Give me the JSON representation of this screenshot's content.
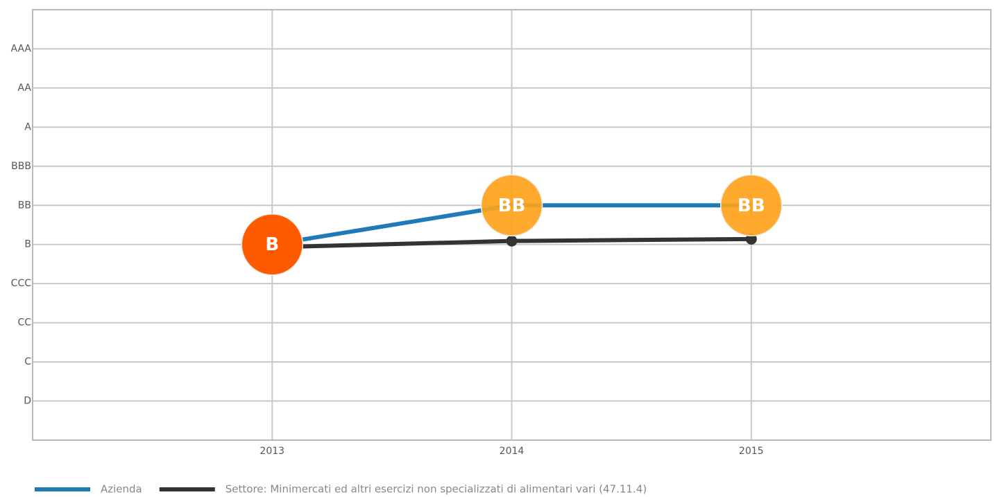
{
  "chart_data": {
    "type": "line",
    "categories": [
      "2013",
      "2014",
      "2015"
    ],
    "ylim": [
      0,
      11
    ],
    "yticks": [
      {
        "value": 1,
        "label": "D"
      },
      {
        "value": 2,
        "label": "C"
      },
      {
        "value": 3,
        "label": "CC"
      },
      {
        "value": 4,
        "label": "CCC"
      },
      {
        "value": 5,
        "label": "B"
      },
      {
        "value": 6,
        "label": "BB"
      },
      {
        "value": 7,
        "label": "BBB"
      },
      {
        "value": 8,
        "label": "A"
      },
      {
        "value": 9,
        "label": "AA"
      },
      {
        "value": 10,
        "label": "AAA"
      }
    ],
    "grid": true,
    "legend": "bottom-left",
    "series": [
      {
        "name": "Azienda",
        "color": "#1f7ab8",
        "values": [
          5,
          6,
          6
        ],
        "value_labels": [
          "B",
          "BB",
          "BB"
        ],
        "marker_colors": [
          "#ff5a00",
          "#ffa31a",
          "#ffa31a"
        ]
      },
      {
        "name": "Settore: Minimercati ed altri esercizi non specializzati di alimentari vari (47.11.4)",
        "color": "#333333",
        "values": [
          4.93,
          5.09,
          5.14
        ]
      }
    ]
  }
}
